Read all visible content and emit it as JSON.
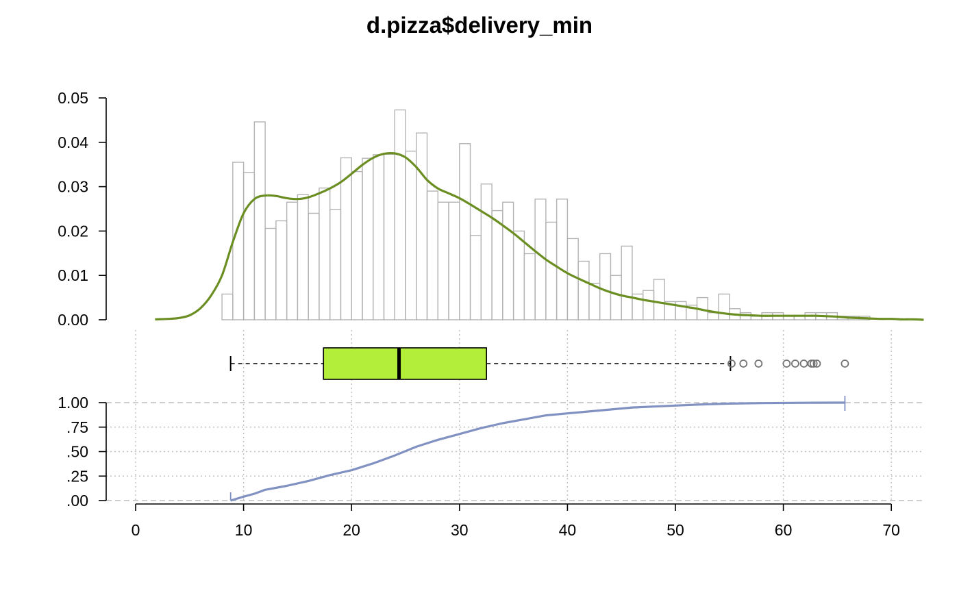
{
  "chart_data": {
    "type": "histogram-density-boxplot-ecdf",
    "title": "d.pizza$delivery_min",
    "colors": {
      "hist_border": "#b3b3b3",
      "density": "#6b8e23",
      "box_fill": "#b2ee3a",
      "ecdf": "#8091c2",
      "grid": "#bebebe",
      "outlier": "#737373"
    },
    "x_axis": {
      "range": [
        0,
        73
      ],
      "ticks": [
        0,
        10,
        20,
        30,
        40,
        50,
        60,
        70
      ],
      "tick_labels": [
        "0",
        "10",
        "20",
        "30",
        "40",
        "50",
        "60",
        "70"
      ]
    },
    "histogram": {
      "ylim": [
        0,
        0.05
      ],
      "y_ticks": [
        0,
        0.01,
        0.02,
        0.03,
        0.04,
        0.05
      ],
      "y_tick_labels": [
        "0.00",
        "0.01",
        "0.02",
        "0.03",
        "0.04",
        "0.05"
      ],
      "bin_start": 8,
      "bin_width": 1,
      "values": [
        0.0058,
        0.0355,
        0.0332,
        0.0446,
        0.0206,
        0.0223,
        0.0265,
        0.0282,
        0.024,
        0.0297,
        0.0249,
        0.0365,
        0.0334,
        0.0364,
        0.0372,
        0.0373,
        0.0473,
        0.038,
        0.0421,
        0.029,
        0.0265,
        0.0265,
        0.0397,
        0.019,
        0.0306,
        0.0246,
        0.0265,
        0.02,
        0.0149,
        0.0272,
        0.022,
        0.0272,
        0.0183,
        0.0132,
        0.0082,
        0.0149,
        0.01,
        0.0166,
        0.0058,
        0.0066,
        0.0091,
        0.0041,
        0.0041,
        0.0033,
        0.005,
        0.0016,
        0.0058,
        0.0025,
        0.0016,
        0.0008,
        0.0016,
        0.0016,
        0.0008,
        0.0008,
        0.0016,
        0.0016,
        0.0016,
        0.0008,
        0.0008,
        0.0008
      ]
    },
    "density": {
      "x": [
        1.8,
        3,
        4,
        5,
        6,
        7,
        8,
        9,
        10,
        11,
        12,
        13,
        14,
        15,
        16,
        17,
        18,
        19,
        20,
        21,
        22,
        23,
        24,
        25,
        26,
        27,
        28,
        29,
        30,
        31,
        32,
        33,
        34,
        35,
        36,
        37,
        38,
        39,
        40,
        41,
        42,
        43,
        44,
        45,
        46,
        47,
        48,
        49,
        50,
        51,
        52,
        53,
        54,
        55,
        56,
        57,
        58,
        59,
        60,
        61,
        62,
        63,
        64,
        65,
        66,
        67,
        68,
        69,
        70,
        71,
        72,
        73
      ],
      "y": [
        0.0001,
        0.0002,
        0.0004,
        0.001,
        0.0026,
        0.0055,
        0.01,
        0.0175,
        0.024,
        0.0272,
        0.028,
        0.0279,
        0.0274,
        0.0272,
        0.0276,
        0.0285,
        0.0296,
        0.031,
        0.0329,
        0.0349,
        0.0365,
        0.0374,
        0.0375,
        0.0366,
        0.0344,
        0.0315,
        0.0296,
        0.0285,
        0.0274,
        0.026,
        0.0245,
        0.023,
        0.0213,
        0.0195,
        0.0175,
        0.0155,
        0.0136,
        0.012,
        0.0105,
        0.0093,
        0.0082,
        0.0071,
        0.0062,
        0.0055,
        0.005,
        0.0045,
        0.0041,
        0.0037,
        0.0033,
        0.0029,
        0.0025,
        0.002,
        0.0016,
        0.0013,
        0.0011,
        0.001,
        0.0009,
        0.0009,
        0.0009,
        0.0009,
        0.0009,
        0.0009,
        0.0008,
        0.0007,
        0.0005,
        0.0004,
        0.0003,
        0.0002,
        0.0002,
        0.0001,
        0.0001,
        0.0
      ]
    },
    "boxplot": {
      "whisker_low": 8.8,
      "q1": 17.4,
      "median": 24.4,
      "q3": 32.5,
      "whisker_high": 55.1,
      "outliers": [
        55.2,
        56.3,
        57.7,
        60.3,
        61.1,
        61.9,
        62.6,
        62.8,
        63.1,
        65.7
      ]
    },
    "ecdf": {
      "ylim": [
        0,
        1
      ],
      "y_ticks": [
        0,
        0.25,
        0.5,
        0.75,
        1
      ],
      "y_tick_labels": [
        ".00",
        ".25",
        ".50",
        ".75",
        "1.00"
      ],
      "x": [
        8.8,
        10,
        11,
        12,
        14,
        16,
        18,
        20,
        22,
        24,
        26,
        28,
        30,
        32,
        34,
        36,
        38,
        40,
        42,
        44,
        46,
        48,
        50,
        52,
        55,
        58,
        61,
        63,
        65.7
      ],
      "y": [
        0.0,
        0.04,
        0.07,
        0.11,
        0.15,
        0.2,
        0.26,
        0.31,
        0.38,
        0.46,
        0.55,
        0.62,
        0.68,
        0.74,
        0.79,
        0.83,
        0.87,
        0.89,
        0.91,
        0.93,
        0.95,
        0.96,
        0.97,
        0.98,
        0.99,
        0.995,
        0.998,
        0.999,
        1.0
      ]
    }
  }
}
